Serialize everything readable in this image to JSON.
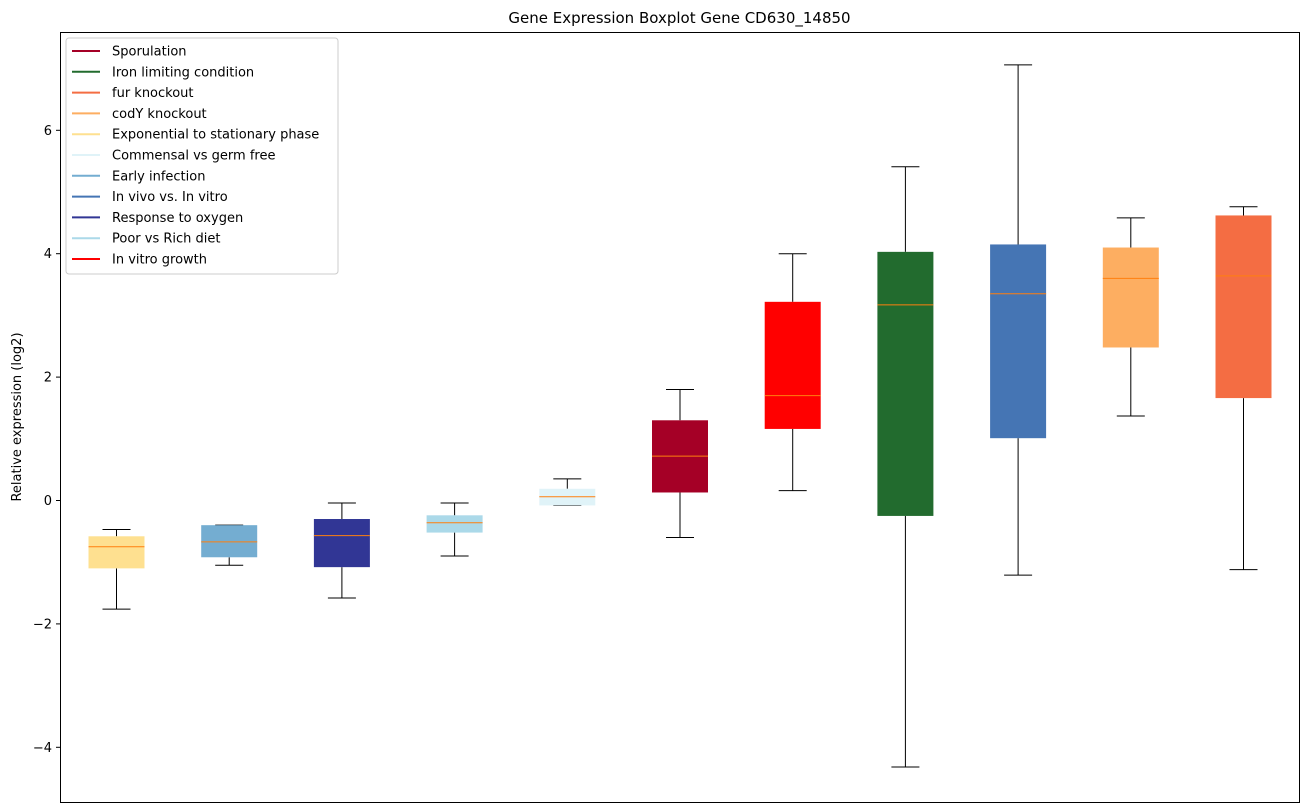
{
  "chart_data": {
    "type": "boxplot",
    "title": "Gene Expression Boxplot Gene CD630_14850",
    "xlabel": "",
    "ylabel": "Relative expression (log2)",
    "ylim": [
      -4.85,
      7.6
    ],
    "yticks": [
      -4,
      -2,
      0,
      2,
      4,
      6
    ],
    "ytick_labels": [
      "−4",
      "−2",
      "0",
      "2",
      "4",
      "6"
    ],
    "median_color": "#ff7f0e",
    "legend_position": "top-left",
    "legend": [
      {
        "label": "Sporulation",
        "color": "#a50026"
      },
      {
        "label": "Iron limiting condition",
        "color": "#226b2e"
      },
      {
        "label": "fur knockout",
        "color": "#f46d43"
      },
      {
        "label": "codY knockout",
        "color": "#fdae61"
      },
      {
        "label": "Exponential to stationary phase",
        "color": "#fee090"
      },
      {
        "label": "Commensal vs germ free",
        "color": "#e0f3f8"
      },
      {
        "label": "Early infection",
        "color": "#74add1"
      },
      {
        "label": "In vivo vs. In vitro",
        "color": "#4575b4"
      },
      {
        "label": "Response to oxygen",
        "color": "#313695"
      },
      {
        "label": "Poor vs Rich diet",
        "color": "#abd9e9"
      },
      {
        "label": "In vitro growth",
        "color": "#ff0000"
      }
    ],
    "boxes": [
      {
        "group": "Exponential to stationary phase",
        "color": "#fee090",
        "whisker_low": -1.76,
        "q1": -1.1,
        "median": -0.75,
        "q3": -0.58,
        "whisker_high": -0.47
      },
      {
        "group": "Early infection",
        "color": "#74add1",
        "whisker_low": -1.05,
        "q1": -0.92,
        "median": -0.67,
        "q3": -0.4,
        "whisker_high": -0.4
      },
      {
        "group": "Response to oxygen",
        "color": "#313695",
        "whisker_low": -1.58,
        "q1": -1.08,
        "median": -0.57,
        "q3": -0.3,
        "whisker_high": -0.04
      },
      {
        "group": "Poor vs Rich diet",
        "color": "#abd9e9",
        "whisker_low": -0.9,
        "q1": -0.52,
        "median": -0.36,
        "q3": -0.24,
        "whisker_high": -0.04
      },
      {
        "group": "Commensal vs germ free",
        "color": "#e0f3f8",
        "whisker_low": -0.08,
        "q1": -0.08,
        "median": 0.06,
        "q3": 0.19,
        "whisker_high": 0.35
      },
      {
        "group": "Sporulation",
        "color": "#a50026",
        "whisker_low": -0.6,
        "q1": 0.13,
        "median": 0.72,
        "q3": 1.3,
        "whisker_high": 1.8
      },
      {
        "group": "In vitro growth",
        "color": "#ff0000",
        "whisker_low": 0.16,
        "q1": 1.16,
        "median": 1.7,
        "q3": 3.22,
        "whisker_high": 4.0
      },
      {
        "group": "Iron limiting condition",
        "color": "#226b2e",
        "whisker_low": -4.32,
        "q1": -0.25,
        "median": 3.17,
        "q3": 4.03,
        "whisker_high": 5.41
      },
      {
        "group": "In vivo vs. In vitro",
        "color": "#4575b4",
        "whisker_low": -1.21,
        "q1": 1.01,
        "median": 3.35,
        "q3": 4.15,
        "whisker_high": 7.06
      },
      {
        "group": "codY knockout",
        "color": "#fdae61",
        "whisker_low": 1.37,
        "q1": 2.48,
        "median": 3.6,
        "q3": 4.1,
        "whisker_high": 4.58
      },
      {
        "group": "fur knockout",
        "color": "#f46d43",
        "whisker_low": -1.12,
        "q1": 1.66,
        "median": 3.64,
        "q3": 4.62,
        "whisker_high": 4.76
      }
    ]
  }
}
